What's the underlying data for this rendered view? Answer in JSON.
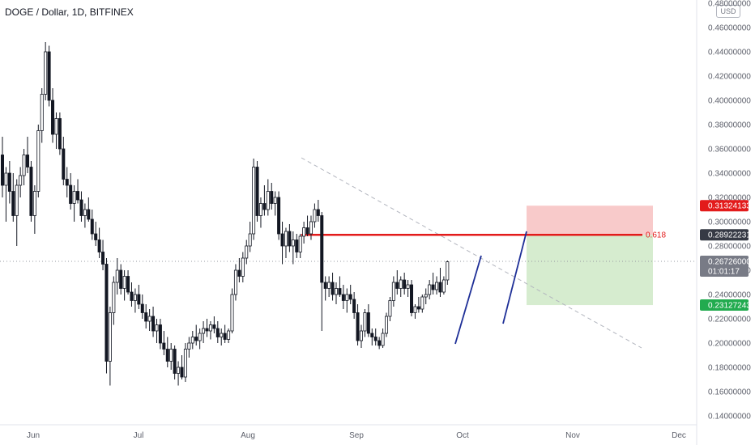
{
  "header": {
    "title": "DOGE / Dollar, 1D, BITFINEX",
    "currency": "USD"
  },
  "colors": {
    "candle": "#131722",
    "fib_line": "#e31b1b",
    "trendline": "#1e2f97",
    "dashed": "#b2b5be",
    "stop_zone": "#f5b8b8",
    "target_zone": "#cfe9c7",
    "badge_red": "#e31b1b",
    "badge_dark": "#363a45",
    "badge_green": "#22ab4f",
    "badge_gray": "#787b86"
  },
  "chart_data": {
    "type": "candlestick",
    "title": "DOGE / Dollar, 1D, BITFINEX",
    "ylim": [
      0.128,
      0.48
    ],
    "y_ticks": [
      "0.48000000",
      "0.46000000",
      "0.44000000",
      "0.42000000",
      "0.40000000",
      "0.38000000",
      "0.36000000",
      "0.34000000",
      "0.32000000",
      "0.30000000",
      "0.28000000",
      "0.26000000",
      "0.24000000",
      "0.22000000",
      "0.20000000",
      "0.18000000",
      "0.16000000",
      "0.14000000"
    ],
    "x_ticks": [
      "Jun",
      "Jul",
      "Aug",
      "Sep",
      "Oct",
      "Nov",
      "Dec"
    ],
    "series": [
      {
        "name": "DOGE / Dollar",
        "values": [
          [
            0.355,
            0.37,
            0.32,
            0.33
          ],
          [
            0.33,
            0.345,
            0.3,
            0.34
          ],
          [
            0.34,
            0.35,
            0.315,
            0.325
          ],
          [
            0.325,
            0.34,
            0.3,
            0.305
          ],
          [
            0.305,
            0.335,
            0.28,
            0.33
          ],
          [
            0.33,
            0.345,
            0.32,
            0.338
          ],
          [
            0.338,
            0.36,
            0.33,
            0.355
          ],
          [
            0.355,
            0.37,
            0.34,
            0.345
          ],
          [
            0.345,
            0.35,
            0.3,
            0.305
          ],
          [
            0.305,
            0.33,
            0.29,
            0.325
          ],
          [
            0.325,
            0.38,
            0.32,
            0.375
          ],
          [
            0.375,
            0.41,
            0.365,
            0.405
          ],
          [
            0.405,
            0.448,
            0.4,
            0.44
          ],
          [
            0.44,
            0.445,
            0.395,
            0.4
          ],
          [
            0.4,
            0.41,
            0.365,
            0.372
          ],
          [
            0.372,
            0.39,
            0.36,
            0.385
          ],
          [
            0.385,
            0.39,
            0.355,
            0.36
          ],
          [
            0.36,
            0.37,
            0.33,
            0.335
          ],
          [
            0.335,
            0.345,
            0.32,
            0.33
          ],
          [
            0.33,
            0.34,
            0.31,
            0.315
          ],
          [
            0.315,
            0.33,
            0.3,
            0.325
          ],
          [
            0.325,
            0.335,
            0.315,
            0.318
          ],
          [
            0.318,
            0.325,
            0.3,
            0.305
          ],
          [
            0.305,
            0.315,
            0.295,
            0.31
          ],
          [
            0.31,
            0.32,
            0.3,
            0.302
          ],
          [
            0.302,
            0.31,
            0.285,
            0.29
          ],
          [
            0.29,
            0.3,
            0.28,
            0.285
          ],
          [
            0.285,
            0.295,
            0.27,
            0.275
          ],
          [
            0.275,
            0.285,
            0.26,
            0.265
          ],
          [
            0.265,
            0.27,
            0.175,
            0.185
          ],
          [
            0.185,
            0.23,
            0.165,
            0.225
          ],
          [
            0.225,
            0.255,
            0.215,
            0.25
          ],
          [
            0.25,
            0.27,
            0.24,
            0.26
          ],
          [
            0.26,
            0.265,
            0.24,
            0.245
          ],
          [
            0.245,
            0.26,
            0.235,
            0.255
          ],
          [
            0.255,
            0.26,
            0.24,
            0.242
          ],
          [
            0.242,
            0.25,
            0.23,
            0.235
          ],
          [
            0.235,
            0.245,
            0.225,
            0.24
          ],
          [
            0.24,
            0.248,
            0.228,
            0.232
          ],
          [
            0.232,
            0.24,
            0.22,
            0.225
          ],
          [
            0.225,
            0.232,
            0.212,
            0.218
          ],
          [
            0.218,
            0.228,
            0.21,
            0.222
          ],
          [
            0.222,
            0.23,
            0.205,
            0.21
          ],
          [
            0.21,
            0.22,
            0.2,
            0.215
          ],
          [
            0.215,
            0.22,
            0.195,
            0.2
          ],
          [
            0.2,
            0.21,
            0.19,
            0.195
          ],
          [
            0.195,
            0.205,
            0.18,
            0.185
          ],
          [
            0.185,
            0.2,
            0.178,
            0.195
          ],
          [
            0.195,
            0.198,
            0.17,
            0.175
          ],
          [
            0.175,
            0.185,
            0.165,
            0.18
          ],
          [
            0.18,
            0.19,
            0.17,
            0.172
          ],
          [
            0.172,
            0.2,
            0.168,
            0.195
          ],
          [
            0.195,
            0.205,
            0.188,
            0.2
          ],
          [
            0.2,
            0.21,
            0.195,
            0.205
          ],
          [
            0.205,
            0.215,
            0.198,
            0.202
          ],
          [
            0.202,
            0.212,
            0.195,
            0.208
          ],
          [
            0.208,
            0.218,
            0.2,
            0.212
          ],
          [
            0.212,
            0.22,
            0.205,
            0.21
          ],
          [
            0.21,
            0.218,
            0.203,
            0.215
          ],
          [
            0.215,
            0.222,
            0.208,
            0.212
          ],
          [
            0.212,
            0.218,
            0.2,
            0.205
          ],
          [
            0.205,
            0.212,
            0.198,
            0.208
          ],
          [
            0.208,
            0.215,
            0.2,
            0.203
          ],
          [
            0.203,
            0.212,
            0.2,
            0.21
          ],
          [
            0.21,
            0.245,
            0.208,
            0.24
          ],
          [
            0.24,
            0.265,
            0.235,
            0.26
          ],
          [
            0.26,
            0.27,
            0.25,
            0.255
          ],
          [
            0.255,
            0.275,
            0.25,
            0.27
          ],
          [
            0.27,
            0.285,
            0.265,
            0.28
          ],
          [
            0.28,
            0.3,
            0.275,
            0.29
          ],
          [
            0.29,
            0.352,
            0.285,
            0.345
          ],
          [
            0.345,
            0.35,
            0.3,
            0.305
          ],
          [
            0.305,
            0.32,
            0.295,
            0.315
          ],
          [
            0.315,
            0.33,
            0.305,
            0.31
          ],
          [
            0.31,
            0.335,
            0.305,
            0.325
          ],
          [
            0.325,
            0.332,
            0.31,
            0.315
          ],
          [
            0.315,
            0.325,
            0.305,
            0.32
          ],
          [
            0.32,
            0.325,
            0.285,
            0.29
          ],
          [
            0.29,
            0.3,
            0.265,
            0.28
          ],
          [
            0.28,
            0.295,
            0.27,
            0.292
          ],
          [
            0.292,
            0.298,
            0.275,
            0.28
          ],
          [
            0.28,
            0.292,
            0.265,
            0.285
          ],
          [
            0.285,
            0.29,
            0.27,
            0.275
          ],
          [
            0.275,
            0.29,
            0.27,
            0.288
          ],
          [
            0.288,
            0.3,
            0.282,
            0.295
          ],
          [
            0.295,
            0.305,
            0.288,
            0.29
          ],
          [
            0.29,
            0.305,
            0.285,
            0.3
          ],
          [
            0.3,
            0.315,
            0.295,
            0.31
          ],
          [
            0.31,
            0.318,
            0.3,
            0.305
          ],
          [
            0.305,
            0.308,
            0.21,
            0.25
          ],
          [
            0.25,
            0.255,
            0.235,
            0.245
          ],
          [
            0.245,
            0.255,
            0.238,
            0.25
          ],
          [
            0.25,
            0.258,
            0.235,
            0.24
          ],
          [
            0.24,
            0.25,
            0.232,
            0.245
          ],
          [
            0.245,
            0.255,
            0.238,
            0.24
          ],
          [
            0.24,
            0.248,
            0.228,
            0.235
          ],
          [
            0.235,
            0.245,
            0.225,
            0.24
          ],
          [
            0.24,
            0.248,
            0.232,
            0.236
          ],
          [
            0.236,
            0.242,
            0.22,
            0.225
          ],
          [
            0.225,
            0.232,
            0.198,
            0.202
          ],
          [
            0.202,
            0.215,
            0.196,
            0.21
          ],
          [
            0.21,
            0.228,
            0.205,
            0.225
          ],
          [
            0.225,
            0.232,
            0.205,
            0.208
          ],
          [
            0.208,
            0.212,
            0.198,
            0.205
          ],
          [
            0.205,
            0.212,
            0.198,
            0.202
          ],
          [
            0.202,
            0.205,
            0.195,
            0.198
          ],
          [
            0.198,
            0.212,
            0.196,
            0.208
          ],
          [
            0.208,
            0.225,
            0.205,
            0.222
          ],
          [
            0.222,
            0.238,
            0.218,
            0.235
          ],
          [
            0.235,
            0.255,
            0.23,
            0.25
          ],
          [
            0.25,
            0.26,
            0.24,
            0.245
          ],
          [
            0.245,
            0.255,
            0.238,
            0.252
          ],
          [
            0.252,
            0.258,
            0.24,
            0.245
          ],
          [
            0.245,
            0.252,
            0.238,
            0.248
          ],
          [
            0.248,
            0.252,
            0.222,
            0.225
          ],
          [
            0.225,
            0.232,
            0.22,
            0.23
          ],
          [
            0.23,
            0.238,
            0.225,
            0.228
          ],
          [
            0.228,
            0.24,
            0.225,
            0.238
          ],
          [
            0.238,
            0.245,
            0.232,
            0.24
          ],
          [
            0.24,
            0.252,
            0.236,
            0.248
          ],
          [
            0.248,
            0.258,
            0.24,
            0.244
          ],
          [
            0.244,
            0.255,
            0.24,
            0.25
          ],
          [
            0.25,
            0.262,
            0.238,
            0.242
          ],
          [
            0.242,
            0.255,
            0.24,
            0.252
          ],
          [
            0.252,
            0.268,
            0.248,
            0.267
          ]
        ]
      }
    ],
    "annotations": {
      "fib_level_label": "0.618",
      "fib_level_value": 0.2892,
      "stop_top": 0.3132,
      "entry": 0.2892,
      "target_bottom": 0.2313,
      "last_price": 0.2673,
      "countdown": "01:01:17"
    },
    "price_badges": [
      {
        "label": "0.31324133",
        "value": 0.3132,
        "color": "#e31b1b"
      },
      {
        "label": "0.28922231",
        "value": 0.2892,
        "color": "#363a45"
      },
      {
        "label": "0.26726000",
        "sublabel": "01:01:17",
        "value": 0.2673,
        "color": "#787b86"
      },
      {
        "label": "0.23127243",
        "value": 0.2313,
        "color": "#22ab4f"
      }
    ]
  }
}
